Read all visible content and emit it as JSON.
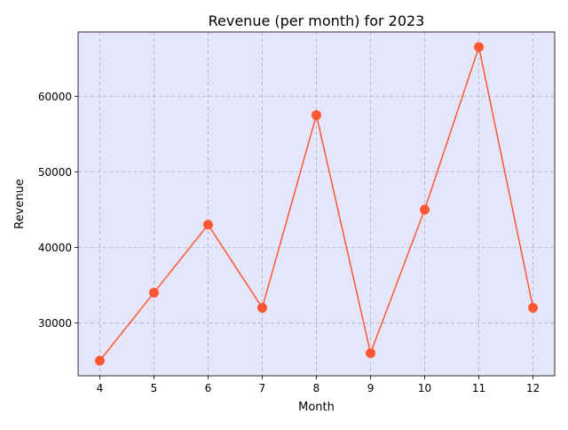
{
  "chart_data": {
    "type": "line",
    "title": "Revenue (per month) for 2023",
    "xlabel": "Month",
    "ylabel": "Revenue",
    "x": [
      4,
      5,
      6,
      7,
      8,
      9,
      10,
      11,
      12
    ],
    "series": [
      {
        "values": [
          25000,
          34000,
          43000,
          32000,
          57500,
          26000,
          45000,
          66500,
          32000
        ]
      }
    ],
    "xticks": [
      "4",
      "5",
      "6",
      "7",
      "8",
      "9",
      "10",
      "11",
      "12"
    ],
    "yticks": [
      30000,
      40000,
      50000,
      60000
    ],
    "ytick_labels": [
      "30000",
      "40000",
      "50000",
      "60000"
    ],
    "xlim": [
      3.6,
      12.4
    ],
    "ylim": [
      23000,
      68500
    ],
    "grid": true,
    "colors": {
      "plot_background": "#e6e6fa",
      "line": "#ff5733",
      "marker": "#ff5733",
      "grid": "#b0b0c8"
    }
  }
}
